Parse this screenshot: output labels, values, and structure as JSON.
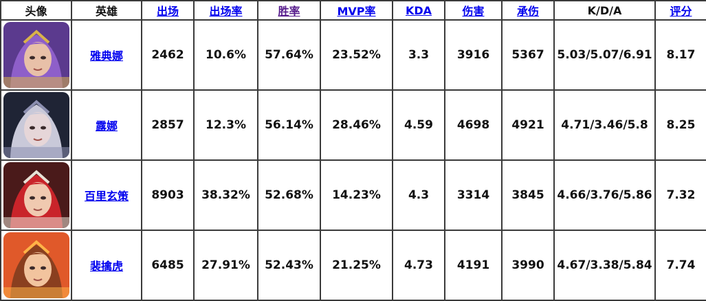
{
  "headers": {
    "avatar": "头像",
    "hero": "英雄",
    "appearances": "出场",
    "appearance_rate": "出场率",
    "win_rate": "胜率",
    "mvp_rate": "MVP率",
    "kda": "KDA",
    "damage": "伤害",
    "damage_taken": "承伤",
    "kda_detail": "K/D/A",
    "score": "评分"
  },
  "rows": [
    {
      "hero": "雅典娜",
      "appearances": "2462",
      "appearance_rate": "10.6%",
      "win_rate": "57.64%",
      "mvp_rate": "23.52%",
      "kda": "3.3",
      "damage": "3916",
      "damage_taken": "5367",
      "kda_detail": "5.03/5.07/6.91",
      "score": "8.17",
      "portrait": {
        "bg": "#5b3a8e",
        "hair": "#8e5fc9",
        "skin": "#e8c0a8",
        "accent": "#d9b24a"
      }
    },
    {
      "hero": "露娜",
      "appearances": "2857",
      "appearance_rate": "12.3%",
      "win_rate": "56.14%",
      "mvp_rate": "28.46%",
      "kda": "4.59",
      "damage": "4698",
      "damage_taken": "4921",
      "kda_detail": "4.71/3.46/5.8",
      "score": "8.25",
      "portrait": {
        "bg": "#1f2435",
        "hair": "#c9c9d9",
        "skin": "#e6d6d8",
        "accent": "#8c8fb0"
      }
    },
    {
      "hero": "百里玄策",
      "appearances": "8903",
      "appearance_rate": "38.32%",
      "win_rate": "52.68%",
      "mvp_rate": "14.23%",
      "kda": "4.3",
      "damage": "3314",
      "damage_taken": "3845",
      "kda_detail": "4.66/3.76/5.86",
      "score": "7.32",
      "portrait": {
        "bg": "#4a1a1a",
        "hair": "#c9242a",
        "skin": "#f0c9b0",
        "accent": "#e8e2d6"
      }
    },
    {
      "hero": "裴擒虎",
      "appearances": "6485",
      "appearance_rate": "27.91%",
      "win_rate": "52.43%",
      "mvp_rate": "21.25%",
      "kda": "4.73",
      "damage": "4191",
      "damage_taken": "3990",
      "kda_detail": "4.67/3.38/5.84",
      "score": "7.74",
      "portrait": {
        "bg": "#e0592a",
        "hair": "#8a3f1f",
        "skin": "#f2c49e",
        "accent": "#ffb347"
      }
    }
  ]
}
